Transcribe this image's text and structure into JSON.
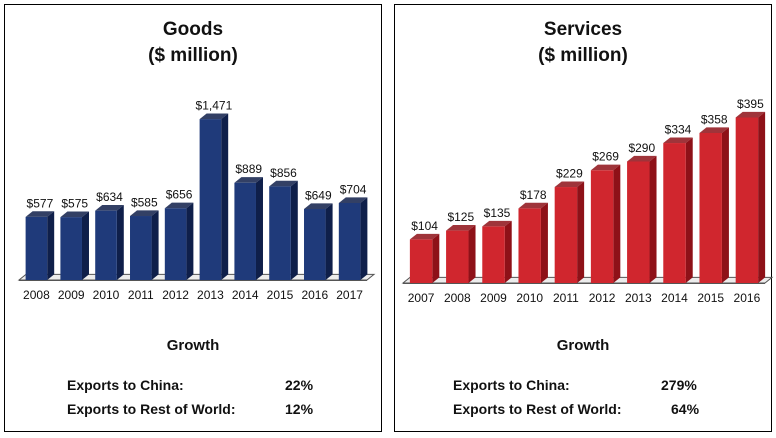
{
  "panels": [
    {
      "title_line1": "Goods",
      "title_line2": "($ million)",
      "growth_title": "Growth",
      "growth": [
        {
          "label": "Exports to China:",
          "value": "22%"
        },
        {
          "label": "Exports to Rest of World:",
          "value": "12%"
        }
      ]
    },
    {
      "title_line1": "Services",
      "title_line2": "($ million)",
      "growth_title": "Growth",
      "growth": [
        {
          "label": "Exports to China:",
          "value": "279%"
        },
        {
          "label": "Exports to Rest of World:",
          "value": "64%"
        }
      ]
    }
  ],
  "chart_data": [
    {
      "type": "bar",
      "title": "Goods ($ million)",
      "categories": [
        "2008",
        "2009",
        "2010",
        "2011",
        "2012",
        "2013",
        "2014",
        "2015",
        "2016",
        "2017"
      ],
      "values": [
        577,
        575,
        634,
        585,
        656,
        1471,
        889,
        856,
        649,
        704
      ],
      "data_labels": [
        "$577",
        "$575",
        "$634",
        "$585",
        "$656",
        "$1,471",
        "$889",
        "$856",
        "$649",
        "$704"
      ],
      "bar_color": "#1f3a7a",
      "bar_side_color": "#0f1f4a",
      "ylim": [
        0,
        1600
      ],
      "grid": false,
      "legend": "none"
    },
    {
      "type": "bar",
      "title": "Services ($ million)",
      "categories": [
        "2007",
        "2008",
        "2009",
        "2010",
        "2011",
        "2012",
        "2013",
        "2014",
        "2015",
        "2016"
      ],
      "values": [
        104,
        125,
        135,
        178,
        229,
        269,
        290,
        334,
        358,
        395
      ],
      "data_labels": [
        "$104",
        "$125",
        "$135",
        "$178",
        "$229",
        "$269",
        "$290",
        "$334",
        "$358",
        "$395"
      ],
      "bar_color": "#d0262e",
      "bar_side_color": "#8e1118",
      "ylim": [
        0,
        420
      ],
      "grid": false,
      "legend": "none"
    }
  ]
}
